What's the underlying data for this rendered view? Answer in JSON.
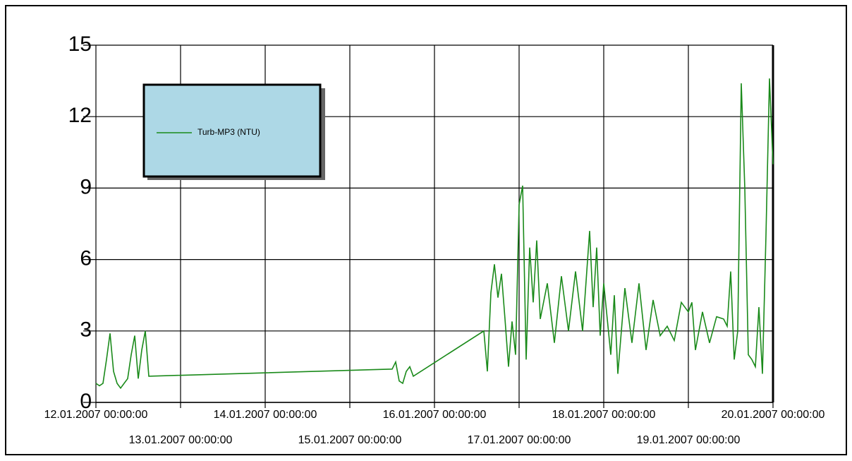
{
  "chart_data": {
    "type": "line",
    "x": [
      "12.01.2007 00:00:00",
      "12.01.2007 01:00:00",
      "12.01.2007 02:00:00",
      "12.01.2007 03:00:00",
      "12.01.2007 04:00:00",
      "12.01.2007 05:00:00",
      "12.01.2007 06:00:00",
      "12.01.2007 07:00:00",
      "12.01.2007 08:00:00",
      "12.01.2007 09:00:00",
      "12.01.2007 10:00:00",
      "12.01.2007 11:00:00",
      "12.01.2007 12:00:00",
      "12.01.2007 13:00:00",
      "12.01.2007 14:00:00",
      "12.01.2007 15:00:00",
      "15.01.2007 12:00:00",
      "15.01.2007 13:00:00",
      "15.01.2007 14:00:00",
      "15.01.2007 15:00:00",
      "15.01.2007 16:00:00",
      "15.01.2007 17:00:00",
      "15.01.2007 18:00:00",
      "16.01.2007 14:00:00",
      "16.01.2007 15:00:00",
      "16.01.2007 16:00:00",
      "16.01.2007 17:00:00",
      "16.01.2007 18:00:00",
      "16.01.2007 19:00:00",
      "16.01.2007 20:00:00",
      "16.01.2007 21:00:00",
      "16.01.2007 22:00:00",
      "16.01.2007 23:00:00",
      "17.01.2007 00:00:00",
      "17.01.2007 01:00:00",
      "17.01.2007 02:00:00",
      "17.01.2007 03:00:00",
      "17.01.2007 04:00:00",
      "17.01.2007 05:00:00",
      "17.01.2007 06:00:00",
      "17.01.2007 08:00:00",
      "17.01.2007 10:00:00",
      "17.01.2007 12:00:00",
      "17.01.2007 14:00:00",
      "17.01.2007 16:00:00",
      "17.01.2007 18:00:00",
      "17.01.2007 20:00:00",
      "17.01.2007 21:00:00",
      "17.01.2007 22:00:00",
      "17.01.2007 23:00:00",
      "18.01.2007 00:00:00",
      "18.01.2007 02:00:00",
      "18.01.2007 03:00:00",
      "18.01.2007 04:00:00",
      "18.01.2007 06:00:00",
      "18.01.2007 08:00:00",
      "18.01.2007 10:00:00",
      "18.01.2007 12:00:00",
      "18.01.2007 14:00:00",
      "18.01.2007 16:00:00",
      "18.01.2007 18:00:00",
      "18.01.2007 20:00:00",
      "18.01.2007 22:00:00",
      "19.01.2007 00:00:00",
      "19.01.2007 01:00:00",
      "19.01.2007 02:00:00",
      "19.01.2007 04:00:00",
      "19.01.2007 06:00:00",
      "19.01.2007 08:00:00",
      "19.01.2007 10:00:00",
      "19.01.2007 11:00:00",
      "19.01.2007 12:00:00",
      "19.01.2007 13:00:00",
      "19.01.2007 14:00:00",
      "19.01.2007 15:00:00",
      "19.01.2007 16:00:00",
      "19.01.2007 17:00:00",
      "19.01.2007 18:00:00",
      "19.01.2007 19:00:00",
      "19.01.2007 20:00:00",
      "19.01.2007 21:00:00",
      "19.01.2007 22:00:00",
      "19.01.2007 23:00:00",
      "20.01.2007 00:00:00"
    ],
    "series": [
      {
        "name": "Turb-MP3 (NTU)",
        "color": "#1a8a1a",
        "values": [
          0.8,
          0.7,
          0.8,
          1.8,
          2.9,
          1.3,
          0.8,
          0.6,
          0.8,
          1.0,
          2.0,
          2.8,
          1.0,
          2.2,
          3.0,
          1.1,
          1.4,
          1.7,
          0.9,
          0.8,
          1.3,
          1.5,
          1.1,
          3.0,
          1.3,
          4.6,
          5.8,
          4.4,
          5.4,
          3.5,
          1.5,
          3.4,
          2.0,
          8.3,
          9.1,
          1.8,
          6.5,
          4.2,
          6.8,
          3.5,
          5.0,
          2.5,
          5.3,
          3.0,
          5.5,
          3.0,
          7.2,
          4.0,
          6.5,
          2.8,
          5.0,
          2.0,
          4.5,
          1.2,
          4.8,
          2.5,
          5.0,
          2.2,
          4.3,
          2.8,
          3.2,
          2.6,
          4.2,
          3.8,
          4.2,
          2.2,
          3.8,
          2.5,
          3.6,
          3.5,
          3.2,
          5.5,
          1.8,
          3.0,
          13.4,
          9.0,
          2.0,
          1.8,
          1.5,
          4.0,
          1.2,
          7.0,
          13.6,
          10.0
        ]
      }
    ],
    "xlim": [
      "12.01.2007 00:00:00",
      "20.01.2007 00:00:00"
    ],
    "xticks": [
      "12.01.2007 00:00:00",
      "13.01.2007 00:00:00",
      "14.01.2007 00:00:00",
      "15.01.2007 00:00:00",
      "16.01.2007 00:00:00",
      "17.01.2007 00:00:00",
      "18.01.2007 00:00:00",
      "19.01.2007 00:00:00",
      "20.01.2007 00:00:00"
    ],
    "ylim": [
      0,
      15
    ],
    "yticks": [
      0,
      3,
      6,
      9,
      12,
      15
    ],
    "grid": true,
    "legend": "upper left"
  }
}
